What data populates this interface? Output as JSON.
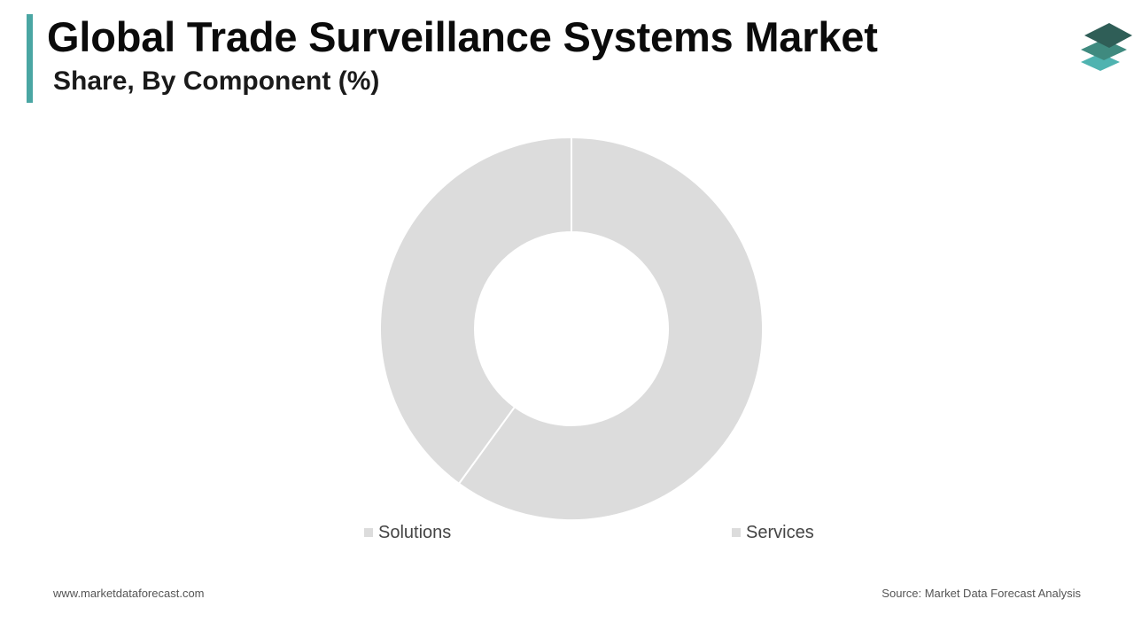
{
  "header": {
    "title": "Global Trade Surveillance Systems Market",
    "subtitle": "Share, By Component (%)"
  },
  "brand": {
    "accent_color": "#4aa6a3",
    "logo_icon": "stacked-layers-logo-icon",
    "logo_colors": [
      "#2f5e57",
      "#3f8a7f",
      "#4fb3b0"
    ]
  },
  "footer": {
    "website": "www.marketdataforecast.com",
    "source": "Source: Market Data Forecast Analysis"
  },
  "chart_data": {
    "type": "pie",
    "subtype": "donut",
    "title": "Global Trade Surveillance Systems Market",
    "subtitle": "Share, By Component (%)",
    "categories": [
      "Solutions",
      "Services"
    ],
    "values": [
      60,
      40
    ],
    "unit": "%",
    "colors": [
      "#dcdcdc",
      "#dcdcdc"
    ],
    "data_labels": false,
    "legend_position": "bottom"
  }
}
